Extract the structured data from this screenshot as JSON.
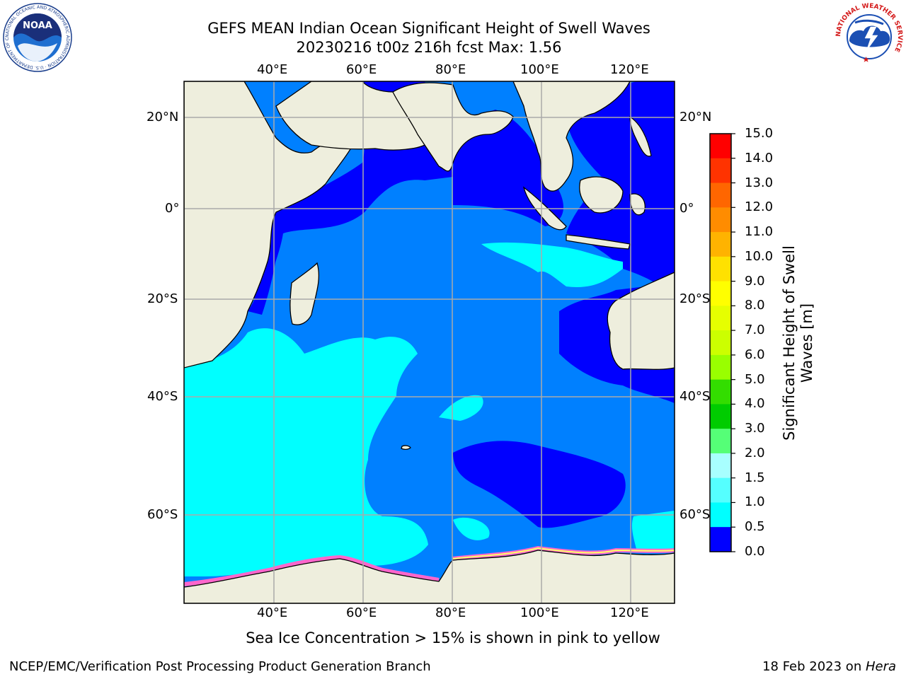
{
  "title": {
    "line1": "GEFS MEAN Indian Ocean Significant Height of Swell Waves",
    "line2": "20230216 t00z 216h fcst   Max: 1.56"
  },
  "map": {
    "lon_labels": [
      "40°E",
      "60°E",
      "80°E",
      "100°E",
      "120°E"
    ],
    "lat_labels": [
      "20°N",
      "0°",
      "20°S",
      "40°S",
      "60°S"
    ],
    "colors": {
      "land": "#EEEEDD",
      "band_0_0_5": "#0000FF",
      "band_0_5_1_0": "#0080FF",
      "band_1_0_1_5": "#00FFFF",
      "sea_ice": "#FF66CC",
      "grid": "#AAAAAA"
    }
  },
  "colorbar": {
    "title_line1": "Significant Height of Swell",
    "title_line2": "Waves [m]",
    "ticks": [
      "15.0",
      "14.0",
      "13.0",
      "12.0",
      "11.0",
      "10.0",
      "9.0",
      "8.0",
      "7.0",
      "6.0",
      "5.0",
      "4.0",
      "3.0",
      "2.0",
      "1.5",
      "1.0",
      "0.5",
      "0.0"
    ],
    "colors": [
      "#FF0000",
      "#FF3300",
      "#FF6600",
      "#FF8C00",
      "#FFB300",
      "#FFE100",
      "#FFFF00",
      "#E6FF00",
      "#CCFF00",
      "#99FF00",
      "#33DD00",
      "#00CC00",
      "#55FF77",
      "#A8FFFF",
      "#55FFFF",
      "#00FFFF",
      "#0080FF",
      "#0000FF"
    ]
  },
  "caption": "Sea Ice Concentration > 15% is shown in pink to yellow",
  "footer": {
    "left": "NCEP/EMC/Verification Post Processing Product Generation Branch",
    "right_date": "18 Feb 2023 on ",
    "right_host": "Hera"
  },
  "logos": {
    "noaa_text": "NOAA",
    "noaa_ring": "NATIONAL OCEANIC AND ATMOSPHERIC ADMINISTRATION · U.S. DEPARTMENT OF COMMERCE",
    "nws_ring": "NATIONAL WEATHER SERVICE"
  }
}
